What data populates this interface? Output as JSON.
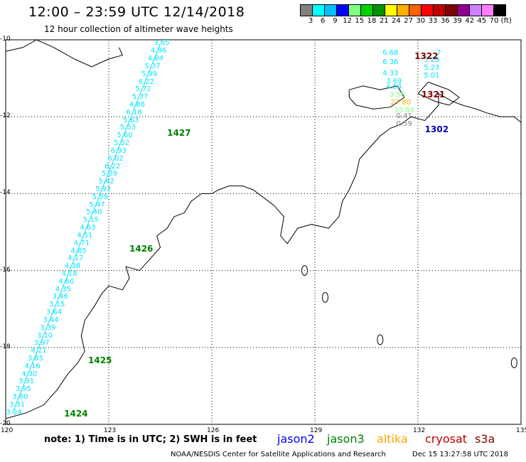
{
  "header": {
    "title": "12:00 – 23:59 UTC 12/14/2018",
    "subtitle": "12 hour collection of altimeter wave heights"
  },
  "colorbar": {
    "colors": [
      "#808080",
      "#00ffff",
      "#00bfff",
      "#0000ff",
      "#80ff80",
      "#00d000",
      "#009000",
      "#ffff00",
      "#ffb000",
      "#ff6000",
      "#ff0000",
      "#c00000",
      "#800000",
      "#900090",
      "#d080ff",
      "#ff80ff",
      "#000000"
    ],
    "labels": [
      "3",
      "6",
      "9",
      "12",
      "15",
      "18",
      "21",
      "24",
      "27",
      "30",
      "33",
      "36",
      "39",
      "42",
      "45",
      "70",
      "(ft)"
    ]
  },
  "map": {
    "lon_ticks": [
      "120",
      "123",
      "126",
      "129",
      "132",
      "135"
    ],
    "lat_ticks": [
      "-10",
      "-12",
      "-14",
      "-16",
      "-18",
      "-20"
    ],
    "lon_range": [
      120,
      135
    ],
    "lat_range": [
      -20,
      -10
    ],
    "track_color": "#00e5ff",
    "swh_values": [
      "3.65",
      "4.96",
      "4.84",
      "5.37",
      "5.99",
      "6.22",
      "5.72",
      "5.37",
      "4.88",
      "6.18",
      "5.63",
      "5.53",
      "5.60",
      "5.52",
      "6.93",
      "6.02",
      "6.22",
      "5.39",
      "5.42",
      "5.92",
      "5.59",
      "5.47",
      "5.40",
      "5.15",
      "4.63",
      "4.51",
      "4.71",
      "4.85",
      "4.17",
      "4.38",
      "4.18",
      "4.60",
      "4.35",
      "3.46",
      "3.15",
      "3.64",
      "3.44",
      "3.39",
      "3.10",
      "3.97",
      "4.21",
      "3.85",
      "4.16",
      "4.30",
      "3.91",
      "3.95",
      "3.60",
      "3.31",
      "3.24"
    ],
    "times": [
      {
        "text": "1427",
        "color": "#008000",
        "lon": 124.7,
        "lat": -12.3
      },
      {
        "text": "1426",
        "color": "#008000",
        "lon": 123.6,
        "lat": -15.3
      },
      {
        "text": "1425",
        "color": "#008000",
        "lon": 122.4,
        "lat": -18.2
      },
      {
        "text": "1424",
        "color": "#008000",
        "lon": 121.7,
        "lat": -19.6
      },
      {
        "text": "1322",
        "color": "#800000",
        "lon": 131.9,
        "lat": -10.3
      },
      {
        "text": "1321",
        "color": "#800000",
        "lon": 132.1,
        "lat": -11.3
      },
      {
        "text": "1302",
        "color": "#0000c0",
        "lon": 132.2,
        "lat": -12.2
      }
    ],
    "right_track_values": [
      {
        "text": "6.68",
        "color": "#00e5ff",
        "lon": 131.2,
        "lat": -10.25
      },
      {
        "text": "6.36",
        "color": "#00e5ff",
        "lon": 131.2,
        "lat": -10.5
      },
      {
        "text": "4.33",
        "color": "#00e5ff",
        "lon": 131.2,
        "lat": -10.8
      },
      {
        "text": "3.69",
        "color": "#00e5ff",
        "lon": 131.3,
        "lat": -11.0
      },
      {
        "text": "4.54",
        "color": "#00e5ff",
        "lon": 131.3,
        "lat": -11.15
      },
      {
        "text": "3.58",
        "color": "#80ff80",
        "lon": 131.4,
        "lat": -11.35
      },
      {
        "text": "27.80",
        "color": "#ffb000",
        "lon": 131.5,
        "lat": -11.55
      },
      {
        "text": "33.84",
        "color": "#80ff80",
        "lon": 131.6,
        "lat": -11.75
      },
      {
        "text": "0.41",
        "color": "#808080",
        "lon": 131.6,
        "lat": -11.9
      },
      {
        "text": "0.59",
        "color": "#808080",
        "lon": 131.6,
        "lat": -12.1
      },
      {
        "text": "7",
        "color": "#00e5ff",
        "lon": 132.6,
        "lat": -10.25
      },
      {
        "text": "5.29",
        "color": "#00e5ff",
        "lon": 132.4,
        "lat": -10.45
      },
      {
        "text": "5.23",
        "color": "#00e5ff",
        "lon": 132.4,
        "lat": -10.65
      },
      {
        "text": "5.01",
        "color": "#00e5ff",
        "lon": 132.4,
        "lat": -10.85
      }
    ]
  },
  "footer": {
    "note": "note:  1) Time is in UTC;  2) SWH is in feet",
    "credit": "NOAA/NESDIS Center for Satellite Applications and Research",
    "timestamp": "Dec 15 13:27:58 UTC 2018"
  },
  "legend": [
    {
      "name": "jason2",
      "color": "#0000ff",
      "left": 0
    },
    {
      "name": "jason3",
      "color": "#008000",
      "left": 1
    },
    {
      "name": "altika",
      "color": "#ffa500",
      "left": 2
    },
    {
      "name": "cryosat",
      "color": "#c00000",
      "left": 3
    },
    {
      "name": "s3a",
      "color": "#800000",
      "left": 4
    }
  ]
}
